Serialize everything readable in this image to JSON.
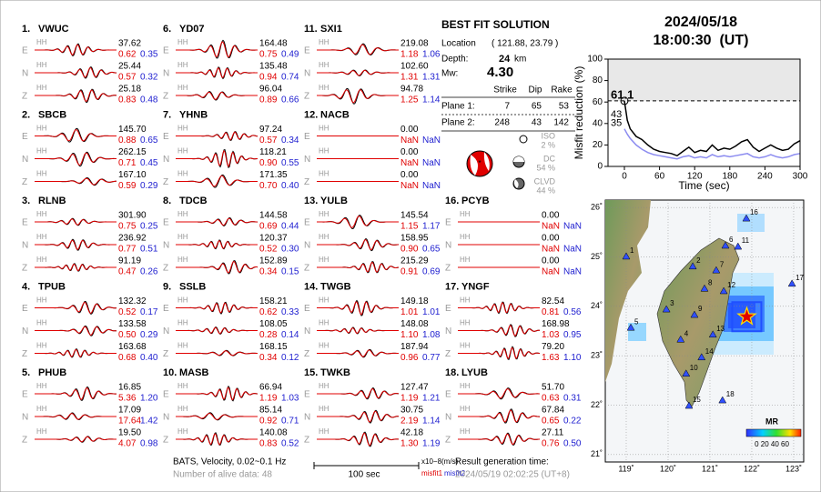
{
  "header": {
    "date": "2024/05/18",
    "time": "18:00:30  (UT)"
  },
  "stations": [
    {
      "label": "1.",
      "name": "VWUC",
      "traces": [
        [
          "E",
          "HH",
          "37.62",
          "0.62",
          "0.35"
        ],
        [
          "N",
          "HH",
          "25.44",
          "0.57",
          "0.32"
        ],
        [
          "Z",
          "HH",
          "25.18",
          "0.83",
          "0.48"
        ]
      ]
    },
    {
      "label": "2.",
      "name": "SBCB",
      "traces": [
        [
          "E",
          "HH",
          "145.70",
          "0.88",
          "0.65"
        ],
        [
          "N",
          "HH",
          "262.15",
          "0.71",
          "0.45"
        ],
        [
          "Z",
          "HH",
          "167.10",
          "0.59",
          "0.29"
        ]
      ]
    },
    {
      "label": "3.",
      "name": "RLNB",
      "traces": [
        [
          "E",
          "HH",
          "301.90",
          "0.75",
          "0.25"
        ],
        [
          "N",
          "HH",
          "236.92",
          "0.77",
          "0.51"
        ],
        [
          "Z",
          "HH",
          "91.19",
          "0.47",
          "0.26"
        ]
      ]
    },
    {
      "label": "4.",
      "name": "TPUB",
      "traces": [
        [
          "E",
          "HH",
          "132.32",
          "0.52",
          "0.17"
        ],
        [
          "N",
          "HH",
          "133.58",
          "0.50",
          "0.29"
        ],
        [
          "Z",
          "HH",
          "163.68",
          "0.68",
          "0.40"
        ]
      ]
    },
    {
      "label": "5.",
      "name": "PHUB",
      "traces": [
        [
          "E",
          "HH",
          "16.85",
          "5.36",
          "1.20"
        ],
        [
          "N",
          "HH",
          "17.09",
          "17.64",
          "1.42"
        ],
        [
          "Z",
          "HH",
          "19.50",
          "4.07",
          "0.98"
        ]
      ]
    },
    {
      "label": "6.",
      "name": "YD07",
      "traces": [
        [
          "E",
          "HH",
          "164.48",
          "0.75",
          "0.49"
        ],
        [
          "N",
          "HH",
          "135.48",
          "0.94",
          "0.74"
        ],
        [
          "Z",
          "HH",
          "96.04",
          "0.89",
          "0.66"
        ]
      ]
    },
    {
      "label": "7.",
      "name": "YHNB",
      "traces": [
        [
          "E",
          "HH",
          "97.24",
          "0.57",
          "0.34"
        ],
        [
          "N",
          "HH",
          "118.21",
          "0.90",
          "0.55"
        ],
        [
          "Z",
          "HH",
          "171.35",
          "0.70",
          "0.40"
        ]
      ]
    },
    {
      "label": "8.",
      "name": "TDCB",
      "traces": [
        [
          "E",
          "HH",
          "144.58",
          "0.69",
          "0.44"
        ],
        [
          "N",
          "HH",
          "120.37",
          "0.52",
          "0.30"
        ],
        [
          "Z",
          "HH",
          "152.89",
          "0.34",
          "0.15"
        ]
      ]
    },
    {
      "label": "9.",
      "name": "SSLB",
      "traces": [
        [
          "E",
          "HH",
          "158.21",
          "0.62",
          "0.33"
        ],
        [
          "N",
          "HH",
          "108.05",
          "0.28",
          "0.14"
        ],
        [
          "Z",
          "HH",
          "168.15",
          "0.34",
          "0.12"
        ]
      ]
    },
    {
      "label": "10.",
      "name": "MASB",
      "traces": [
        [
          "E",
          "HH",
          "66.94",
          "1.19",
          "1.03"
        ],
        [
          "N",
          "HH",
          "85.14",
          "0.92",
          "0.71"
        ],
        [
          "Z",
          "HH",
          "140.08",
          "0.83",
          "0.52"
        ]
      ]
    },
    {
      "label": "11.",
      "name": "SXI1",
      "traces": [
        [
          "E",
          "HH",
          "219.08",
          "1.18",
          "1.06"
        ],
        [
          "N",
          "HH",
          "102.60",
          "1.31",
          "1.31"
        ],
        [
          "Z",
          "HH",
          "94.78",
          "1.25",
          "1.14"
        ]
      ]
    },
    {
      "label": "12.",
      "name": "NACB",
      "traces": [
        [
          "E",
          "HH",
          "0.00",
          "NaN",
          "NaN"
        ],
        [
          "N",
          "HH",
          "0.00",
          "NaN",
          "NaN"
        ],
        [
          "Z",
          "HH",
          "0.00",
          "NaN",
          "NaN"
        ]
      ]
    },
    {
      "label": "13.",
      "name": "YULB",
      "traces": [
        [
          "E",
          "HH",
          "145.54",
          "1.15",
          "1.17"
        ],
        [
          "N",
          "HH",
          "158.95",
          "0.90",
          "0.65"
        ],
        [
          "Z",
          "HH",
          "215.29",
          "0.91",
          "0.69"
        ]
      ]
    },
    {
      "label": "14.",
      "name": "TWGB",
      "traces": [
        [
          "E",
          "HH",
          "149.18",
          "1.01",
          "1.01"
        ],
        [
          "N",
          "HH",
          "148.08",
          "1.10",
          "1.08"
        ],
        [
          "Z",
          "HH",
          "187.94",
          "0.96",
          "0.77"
        ]
      ]
    },
    {
      "label": "15.",
      "name": "TWKB",
      "traces": [
        [
          "E",
          "HH",
          "127.47",
          "1.19",
          "1.21"
        ],
        [
          "N",
          "HH",
          "30.75",
          "2.19",
          "1.14"
        ],
        [
          "Z",
          "HH",
          "42.18",
          "1.30",
          "1.19"
        ]
      ]
    },
    {
      "label": "16.",
      "name": "PCYB",
      "traces": [
        [
          "E",
          "HH",
          "0.00",
          "NaN",
          "NaN"
        ],
        [
          "N",
          "HH",
          "0.00",
          "NaN",
          "NaN"
        ],
        [
          "Z",
          "HH",
          "0.00",
          "NaN",
          "NaN"
        ]
      ]
    },
    {
      "label": "17.",
      "name": "YNGF",
      "traces": [
        [
          "E",
          "HH",
          "82.54",
          "0.81",
          "0.56"
        ],
        [
          "N",
          "HH",
          "168.98",
          "1.03",
          "0.95"
        ],
        [
          "Z",
          "HH",
          "79.20",
          "1.63",
          "1.10"
        ]
      ]
    },
    {
      "label": "18.",
      "name": "LYUB",
      "traces": [
        [
          "E",
          "HH",
          "51.70",
          "0.63",
          "0.31"
        ],
        [
          "N",
          "HH",
          "67.84",
          "0.65",
          "0.22"
        ],
        [
          "Z",
          "HH",
          "27.11",
          "0.76",
          "0.50"
        ]
      ]
    }
  ],
  "solution": {
    "title": "BEST FIT SOLUTION",
    "location_label": "Location",
    "location": "( 121.88, 23.79 )",
    "depth_label": "Depth:",
    "depth": "24",
    "depth_unit": "km",
    "mw_label": "Mw:",
    "mw": "4.30",
    "plane_headers": [
      "Strike",
      "Dip",
      "Rake"
    ],
    "planes": [
      {
        "name": "Plane 1:",
        "strike": 7,
        "dip": 65,
        "rake": 53
      },
      {
        "name": "Plane 2:",
        "strike": 248,
        "dip": 43,
        "rake": 142
      }
    ],
    "components": [
      {
        "name": "ISO",
        "value": "2 %"
      },
      {
        "name": "DC",
        "value": "54 %"
      },
      {
        "name": "CLVD",
        "value": "44 %"
      }
    ]
  },
  "chart_data": {
    "type": "line",
    "y_label": "Misfit reduction (%)",
    "x_label": "Time (sec)",
    "x": [
      0,
      5,
      10,
      20,
      30,
      40,
      50,
      60,
      70,
      80,
      90,
      100,
      110,
      120,
      130,
      140,
      150,
      160,
      170,
      180,
      190,
      200,
      210,
      220,
      230,
      240,
      250,
      260,
      270,
      280,
      290,
      300
    ],
    "series": [
      {
        "color": "#000000",
        "values": [
          61.1,
          43,
          35,
          28,
          25,
          20,
          16,
          14,
          13,
          12,
          10,
          14,
          18,
          13,
          15,
          14,
          20,
          15,
          17,
          16,
          19,
          23,
          25,
          18,
          14,
          17,
          20,
          17,
          15,
          16,
          21,
          24
        ]
      },
      {
        "color": "#8c8cf0",
        "values": [
          35,
          30,
          26,
          20,
          16,
          13,
          11,
          10,
          9,
          8,
          7,
          9,
          10,
          8,
          9,
          8,
          11,
          9,
          10,
          9,
          10,
          11,
          12,
          9,
          8,
          9,
          11,
          9,
          8,
          9,
          11,
          12
        ]
      }
    ],
    "annotations": [
      {
        "label": "61.1",
        "value": 61.1,
        "color": "#e00000"
      },
      {
        "label": "43",
        "value": 43,
        "color": "#999999"
      },
      {
        "label": "35",
        "value": 35,
        "color": "#8c8cf0"
      }
    ],
    "xlim": [
      -28,
      300
    ],
    "xticks": [
      0,
      60,
      120,
      180,
      240,
      300
    ],
    "ylim": [
      0,
      100
    ],
    "yticks": [
      0,
      20,
      40,
      60,
      80,
      100
    ]
  },
  "map": {
    "xlim": [
      118.5,
      123.24
    ],
    "ylim": [
      20.85,
      26.15
    ],
    "lon_ticks": [
      {
        "value": 119,
        "label": "119˚"
      },
      {
        "value": 120,
        "label": "120˚"
      },
      {
        "value": 121,
        "label": "121˚"
      },
      {
        "value": 122,
        "label": "122˚"
      },
      {
        "value": 123,
        "label": "123˚"
      }
    ],
    "lat_ticks": [
      {
        "value": 21,
        "label": "21˚"
      },
      {
        "value": 22,
        "label": "22˚"
      },
      {
        "value": 23,
        "label": "23˚"
      },
      {
        "value": 24,
        "label": "24˚"
      },
      {
        "value": 25,
        "label": "25˚"
      },
      {
        "value": 26,
        "label": "26˚"
      }
    ],
    "event": {
      "lon": 121.88,
      "lat": 23.79
    },
    "stations": [
      {
        "label": "1",
        "lon": 119.0,
        "lat": 25.01
      },
      {
        "label": "2",
        "lon": 120.59,
        "lat": 24.81
      },
      {
        "label": "3",
        "lon": 119.96,
        "lat": 23.94
      },
      {
        "label": "4",
        "lon": 120.3,
        "lat": 23.33
      },
      {
        "label": "5",
        "lon": 119.11,
        "lat": 23.57
      },
      {
        "label": "6",
        "lon": 121.37,
        "lat": 25.23
      },
      {
        "label": "7",
        "lon": 121.15,
        "lat": 24.73
      },
      {
        "label": "8",
        "lon": 120.87,
        "lat": 24.36
      },
      {
        "label": "9",
        "lon": 120.63,
        "lat": 23.83
      },
      {
        "label": "10",
        "lon": 120.43,
        "lat": 22.64
      },
      {
        "label": "11",
        "lon": 121.67,
        "lat": 25.21
      },
      {
        "label": "12",
        "lon": 121.33,
        "lat": 24.31
      },
      {
        "label": "13",
        "lon": 121.07,
        "lat": 23.43
      },
      {
        "label": "14",
        "lon": 120.8,
        "lat": 22.97
      },
      {
        "label": "15",
        "lon": 120.5,
        "lat": 21.99
      },
      {
        "label": "16",
        "lon": 121.87,
        "lat": 25.78
      },
      {
        "label": "17",
        "lon": 122.96,
        "lat": 24.46
      },
      {
        "label": "18",
        "lon": 121.3,
        "lat": 22.1
      }
    ],
    "colorbar_title": "MR",
    "colorbar_ticks": "0 20 40 60"
  },
  "footer": {
    "network": "BATS, Velocity, 0.02~0.1 Hz",
    "alive": "Number of alive data: 48",
    "scale": "100 sec",
    "units": "x10−8(m/s)",
    "misfit1": "misfit1",
    "misfit2": "misfit2",
    "result_label": "Result generation time:",
    "result_time": "2024/05/19 02:02:25 (UT+8)"
  }
}
